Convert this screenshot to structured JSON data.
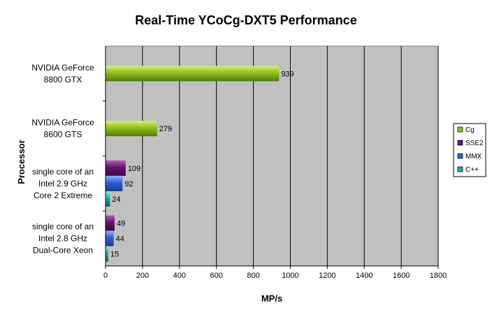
{
  "chart_data": {
    "type": "bar",
    "orientation": "horizontal",
    "title": "Real-Time YCoCg-DXT5 Performance",
    "xlabel": "MP/s",
    "ylabel": "Processor",
    "xlim": [
      0,
      1800
    ],
    "xticks": [
      0,
      200,
      400,
      600,
      800,
      1000,
      1200,
      1400,
      1600,
      1800
    ],
    "grid": true,
    "legend_position": "right",
    "categories": [
      [
        "NVIDIA GeForce",
        "8800 GTX"
      ],
      [
        "NVIDIA GeForce",
        "8600 GTS"
      ],
      [
        "single core of an",
        "Intel 2.9 GHz",
        "Core 2 Extreme"
      ],
      [
        "single core of an",
        "Intel 2.8 GHz",
        "Dual-Core Xeon"
      ]
    ],
    "series": [
      {
        "name": "Cg",
        "color": "#8fc21b",
        "values": [
          939,
          279,
          null,
          null
        ]
      },
      {
        "name": "SSE2",
        "color": "#6a1270",
        "values": [
          null,
          null,
          109,
          49
        ]
      },
      {
        "name": "MMX",
        "color": "#2f5fd8",
        "values": [
          null,
          null,
          92,
          44
        ]
      },
      {
        "name": "C++",
        "color": "#22a8a8",
        "values": [
          null,
          null,
          24,
          15
        ]
      }
    ]
  }
}
